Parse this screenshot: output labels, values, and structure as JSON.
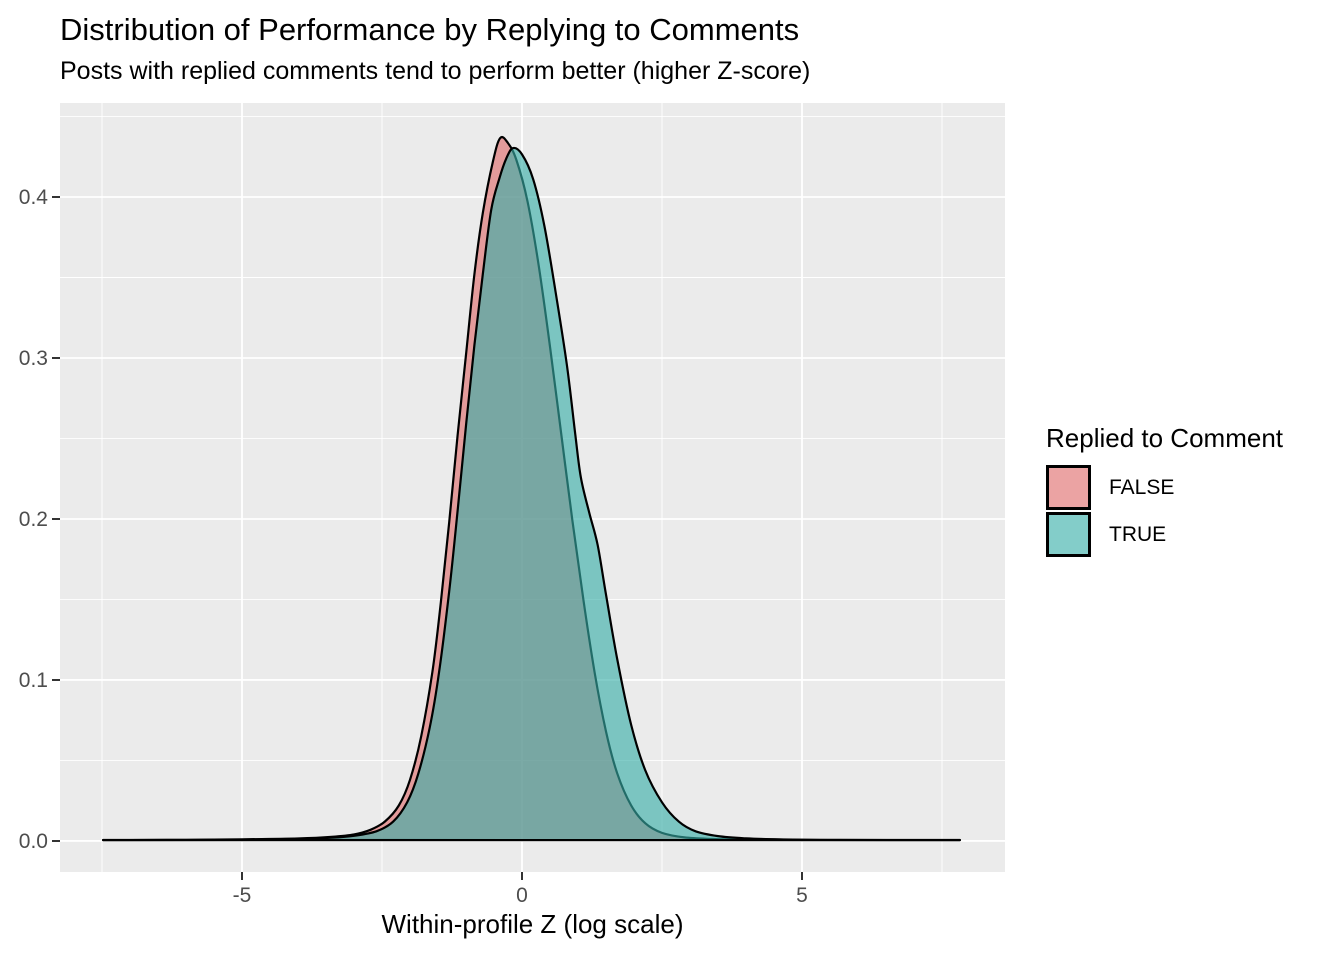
{
  "chart_data": {
    "type": "area",
    "subtype": "density",
    "title": "Distribution of Performance by Replying to Comments",
    "subtitle": "Posts with replied comments tend to perform better (higher Z-score)",
    "xlabel": "Within-profile Z (log scale)",
    "ylabel": "",
    "grid": true,
    "panel_bg": "#EBEBEB",
    "grid_color": "#FFFFFF",
    "tick_text_color": "#4D4D4D",
    "tick_mark_color": "#333333",
    "xlim": [
      -8.25,
      8.625
    ],
    "ylim": [
      -0.0193,
      0.4584
    ],
    "x_ticks": [
      -5,
      0,
      5
    ],
    "x_tick_labels": [
      "-5",
      "0",
      "5"
    ],
    "y_ticks": [
      0.0,
      0.1,
      0.2,
      0.3,
      0.4
    ],
    "y_tick_labels": [
      "0.0",
      "0.1",
      "0.2",
      "0.3",
      "0.4"
    ],
    "x_minor_ticks": [
      -7.5,
      -2.5,
      2.5,
      7.5
    ],
    "y_minor_ticks": [
      0.05,
      0.15,
      0.25,
      0.35,
      0.45
    ],
    "legend": {
      "title": "Replied to Comment",
      "position": "right",
      "items": [
        {
          "label": "FALSE",
          "fill": "rgba(223,107,107,0.62)",
          "stroke": "#000000"
        },
        {
          "label": "TRUE",
          "fill": "rgba(55,175,168,0.62)",
          "stroke": "#000000"
        }
      ]
    },
    "series": [
      {
        "name": "FALSE",
        "fill": "rgba(223,107,107,0.62)",
        "stroke": "#000000",
        "stroke_width": 2.2,
        "peak": {
          "x": -0.39,
          "density": 0.437
        },
        "points": [
          [
            -7.48,
            0.0006
          ],
          [
            -7,
            0.0006
          ],
          [
            -6,
            0.0007
          ],
          [
            -5,
            0.001
          ],
          [
            -4,
            0.0015
          ],
          [
            -3.4,
            0.0025
          ],
          [
            -3,
            0.004
          ],
          [
            -2.7,
            0.007
          ],
          [
            -2.45,
            0.012
          ],
          [
            -2.2,
            0.022
          ],
          [
            -2,
            0.038
          ],
          [
            -1.8,
            0.065
          ],
          [
            -1.6,
            0.105
          ],
          [
            -1.45,
            0.148
          ],
          [
            -1.3,
            0.198
          ],
          [
            -1.15,
            0.252
          ],
          [
            -1,
            0.302
          ],
          [
            -0.85,
            0.352
          ],
          [
            -0.7,
            0.39
          ],
          [
            -0.52,
            0.422
          ],
          [
            -0.39,
            0.4366
          ],
          [
            -0.25,
            0.4335
          ],
          [
            -0.1,
            0.423
          ],
          [
            0.1,
            0.397
          ],
          [
            0.3,
            0.357
          ],
          [
            0.5,
            0.307
          ],
          [
            0.7,
            0.253
          ],
          [
            0.9,
            0.199
          ],
          [
            1.1,
            0.149
          ],
          [
            1.3,
            0.104
          ],
          [
            1.5,
            0.068
          ],
          [
            1.7,
            0.042
          ],
          [
            1.95,
            0.022
          ],
          [
            2.2,
            0.011
          ],
          [
            2.5,
            0.005
          ],
          [
            2.9,
            0.0022
          ],
          [
            3.4,
            0.0012
          ],
          [
            4,
            0.0008
          ],
          [
            5,
            0.0006
          ],
          [
            6,
            0.0005
          ],
          [
            7,
            0.0005
          ],
          [
            7.82,
            0.0005
          ]
        ]
      },
      {
        "name": "TRUE",
        "fill": "rgba(55,175,168,0.62)",
        "stroke": "#000000",
        "stroke_width": 2.2,
        "peak": {
          "x": -0.16,
          "density": 0.43
        },
        "points": [
          [
            -7.48,
            0.0005
          ],
          [
            -7,
            0.0005
          ],
          [
            -6,
            0.0006
          ],
          [
            -5,
            0.0008
          ],
          [
            -4,
            0.0012
          ],
          [
            -3.4,
            0.002
          ],
          [
            -3,
            0.0032
          ],
          [
            -2.6,
            0.006
          ],
          [
            -2.3,
            0.012
          ],
          [
            -2.05,
            0.024
          ],
          [
            -1.85,
            0.042
          ],
          [
            -1.65,
            0.07
          ],
          [
            -1.48,
            0.105
          ],
          [
            -1.3,
            0.155
          ],
          [
            -1.15,
            0.205
          ],
          [
            -1,
            0.258
          ],
          [
            -0.85,
            0.308
          ],
          [
            -0.7,
            0.352
          ],
          [
            -0.55,
            0.392
          ],
          [
            -0.4,
            0.412
          ],
          [
            -0.28,
            0.424
          ],
          [
            -0.16,
            0.4304
          ],
          [
            0,
            0.4265
          ],
          [
            0.2,
            0.411
          ],
          [
            0.4,
            0.382
          ],
          [
            0.6,
            0.341
          ],
          [
            0.8,
            0.296
          ],
          [
            0.95,
            0.253
          ],
          [
            1.05,
            0.226
          ],
          [
            1.2,
            0.204
          ],
          [
            1.35,
            0.184
          ],
          [
            1.5,
            0.153
          ],
          [
            1.7,
            0.113
          ],
          [
            1.95,
            0.072
          ],
          [
            2.2,
            0.044
          ],
          [
            2.5,
            0.024
          ],
          [
            2.8,
            0.012
          ],
          [
            3.1,
            0.006
          ],
          [
            3.5,
            0.003
          ],
          [
            4,
            0.0016
          ],
          [
            4.6,
            0.001
          ],
          [
            5.5,
            0.0007
          ],
          [
            6.5,
            0.0006
          ],
          [
            7.82,
            0.0006
          ]
        ]
      }
    ]
  },
  "layout_text": {
    "note": ""
  }
}
